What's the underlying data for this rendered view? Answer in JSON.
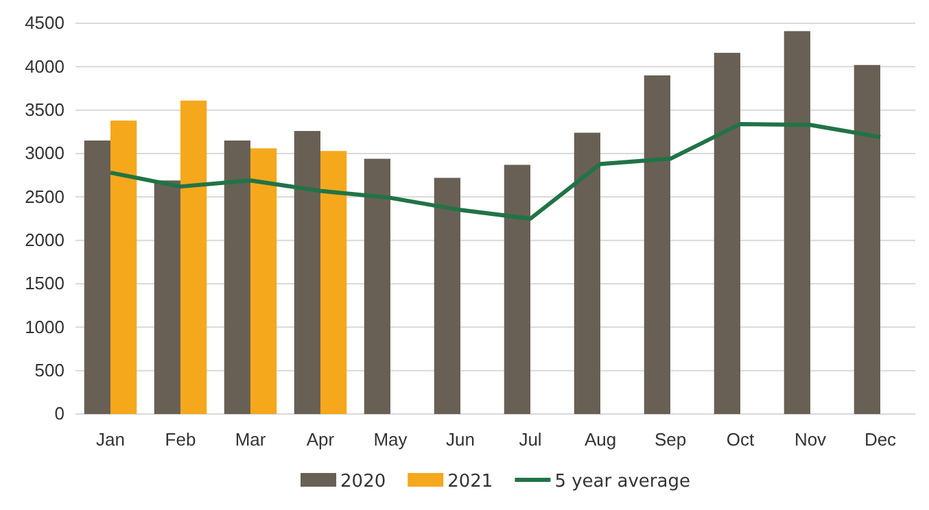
{
  "chart_data": {
    "type": "bar",
    "categories": [
      "Jan",
      "Feb",
      "Mar",
      "Apr",
      "May",
      "Jun",
      "Jul",
      "Aug",
      "Sep",
      "Oct",
      "Nov",
      "Dec"
    ],
    "series": [
      {
        "name": "2020",
        "color": "#686055",
        "values": [
          3150,
          2690,
          3150,
          3260,
          2940,
          2720,
          2870,
          3240,
          3900,
          4160,
          4410,
          4020
        ]
      },
      {
        "name": "2021",
        "color": "#f5a81c",
        "values": [
          3380,
          3610,
          3060,
          3030,
          null,
          null,
          null,
          null,
          null,
          null,
          null,
          null
        ]
      },
      {
        "name": "5 year average",
        "type": "line",
        "color": "#217346",
        "values": [
          2780,
          2620,
          2690,
          2570,
          2490,
          2350,
          2250,
          2880,
          2940,
          3340,
          3330,
          3190
        ]
      }
    ],
    "ylim": [
      0,
      4500
    ],
    "yticks": [
      0,
      500,
      1000,
      1500,
      2000,
      2500,
      3000,
      3500,
      4000,
      4500
    ],
    "grid": "y",
    "legend": "bottom",
    "marker": "none",
    "line_style": "solid"
  }
}
